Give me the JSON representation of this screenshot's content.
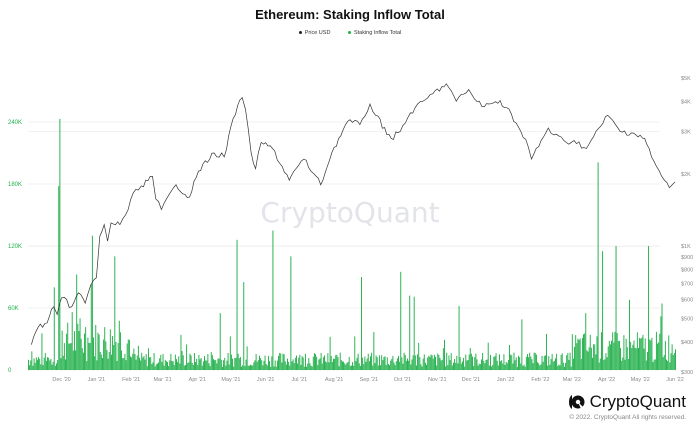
{
  "chart_data": {
    "type": "bar+line",
    "title": "Ethereum: Staking Inflow Total",
    "legend": [
      {
        "name": "Price USD",
        "color": "#222222"
      },
      {
        "name": "Staking Inflow Total",
        "color": "#22b04b"
      }
    ],
    "watermark": "CryptoQuant",
    "x_ticks": [
      "Dec '20",
      "Jan '21",
      "Feb '21",
      "Mar '21",
      "Apr '21",
      "May '21",
      "Jun '21",
      "Jul '21",
      "Aug '21",
      "Sep '21",
      "Oct '21",
      "Nov '21",
      "Dec '21",
      "Jan '22",
      "Feb '22",
      "Mar '22",
      "Apr '22",
      "May '22",
      "Jun '22"
    ],
    "left_axis": {
      "label": "Staking Inflow Total",
      "ticks": [
        "0",
        "60K",
        "120K",
        "180K",
        "240K"
      ],
      "range": [
        0,
        245000
      ],
      "color": "#22b04b"
    },
    "right_axis": {
      "label": "Price USD",
      "scale": "log",
      "ticks": [
        "$300",
        "$400",
        "$500",
        "$600",
        "$700",
        "$800",
        "$900",
        "$1K",
        "$2K",
        "$3K",
        "$4K",
        "$5K"
      ]
    },
    "price_series": {
      "name": "Price USD",
      "x": [
        "2020-11-04",
        "2020-11-10",
        "2020-11-18",
        "2020-11-24",
        "2020-11-27",
        "2020-12-01",
        "2020-12-10",
        "2020-12-16",
        "2020-12-22",
        "2020-12-27",
        "2021-01-01",
        "2021-01-04",
        "2021-01-08",
        "2021-01-11",
        "2021-01-14",
        "2021-01-22",
        "2021-01-27",
        "2021-02-05",
        "2021-02-10",
        "2021-02-20",
        "2021-02-23",
        "2021-02-28",
        "2021-03-13",
        "2021-03-25",
        "2021-04-02",
        "2021-04-16",
        "2021-04-25",
        "2021-05-03",
        "2021-05-11",
        "2021-05-14",
        "2021-05-19",
        "2021-05-23",
        "2021-05-28",
        "2021-06-07",
        "2021-06-22",
        "2021-06-28",
        "2021-07-05",
        "2021-07-20",
        "2021-07-30",
        "2021-08-13",
        "2021-08-24",
        "2021-09-02",
        "2021-09-07",
        "2021-09-21",
        "2021-09-29",
        "2021-10-08",
        "2021-10-21",
        "2021-10-28",
        "2021-11-09",
        "2021-11-18",
        "2021-11-29",
        "2021-12-04",
        "2021-12-13",
        "2021-12-27",
        "2022-01-06",
        "2022-01-21",
        "2022-01-24",
        "2022-02-08",
        "2022-02-13",
        "2022-02-24",
        "2022-03-03",
        "2022-03-14",
        "2022-04-02",
        "2022-04-13",
        "2022-04-25",
        "2022-05-05",
        "2022-05-11",
        "2022-05-20",
        "2022-05-27",
        "2022-06-01"
      ],
      "values": [
        390,
        460,
        480,
        560,
        520,
        610,
        560,
        640,
        580,
        690,
        740,
        1100,
        1230,
        1050,
        1250,
        1230,
        1350,
        1720,
        1780,
        1950,
        1570,
        1420,
        1800,
        1600,
        2050,
        2440,
        2350,
        3400,
        4150,
        3700,
        2450,
        2100,
        2700,
        2550,
        1880,
        2100,
        2300,
        1800,
        2450,
        3300,
        3200,
        3900,
        3500,
        2800,
        3000,
        3580,
        4050,
        4300,
        4730,
        4000,
        4480,
        4100,
        3800,
        4030,
        3550,
        2600,
        2300,
        3100,
        2900,
        2700,
        2750,
        2550,
        3500,
        3000,
        2950,
        2800,
        2350,
        1960,
        1750,
        1850
      ]
    },
    "inflow_series": {
      "name": "Staking Inflow Total",
      "highlights": [
        {
          "date": "2020-11-04",
          "value": 18000
        },
        {
          "date": "2020-11-15",
          "value": 12000
        },
        {
          "date": "2020-11-24",
          "value": 80000
        },
        {
          "date": "2020-11-28",
          "value": 178000
        },
        {
          "date": "2020-11-29",
          "value": 243000
        },
        {
          "date": "2020-12-10",
          "value": 56000
        },
        {
          "date": "2020-12-17",
          "value": 50000
        },
        {
          "date": "2020-12-27",
          "value": 83000
        },
        {
          "date": "2020-12-28",
          "value": 130000
        },
        {
          "date": "2021-01-17",
          "value": 110000
        },
        {
          "date": "2021-04-21",
          "value": 55000
        },
        {
          "date": "2021-05-06",
          "value": 126000
        },
        {
          "date": "2021-05-12",
          "value": 85000
        },
        {
          "date": "2021-06-07",
          "value": 135000
        },
        {
          "date": "2021-06-23",
          "value": 110000
        },
        {
          "date": "2021-08-25",
          "value": 90000
        },
        {
          "date": "2021-09-29",
          "value": 95000
        },
        {
          "date": "2021-10-07",
          "value": 72000
        },
        {
          "date": "2021-10-11",
          "value": 71000
        },
        {
          "date": "2021-11-20",
          "value": 62000
        },
        {
          "date": "2022-01-15",
          "value": 49000
        },
        {
          "date": "2022-03-13",
          "value": 55000
        },
        {
          "date": "2022-03-24",
          "value": 201000
        },
        {
          "date": "2022-03-28",
          "value": 115000
        },
        {
          "date": "2022-04-09",
          "value": 120000
        },
        {
          "date": "2022-05-08",
          "value": 120000
        },
        {
          "date": "2022-06-01",
          "value": 20000
        }
      ],
      "baseline_typical": 10000
    },
    "x_range": [
      "2020-11-01",
      "2022-06-01"
    ]
  },
  "footer": {
    "logo_text": "CryptoQuant",
    "copyright": "© 2022. CryptoQuant All rights reserved."
  }
}
